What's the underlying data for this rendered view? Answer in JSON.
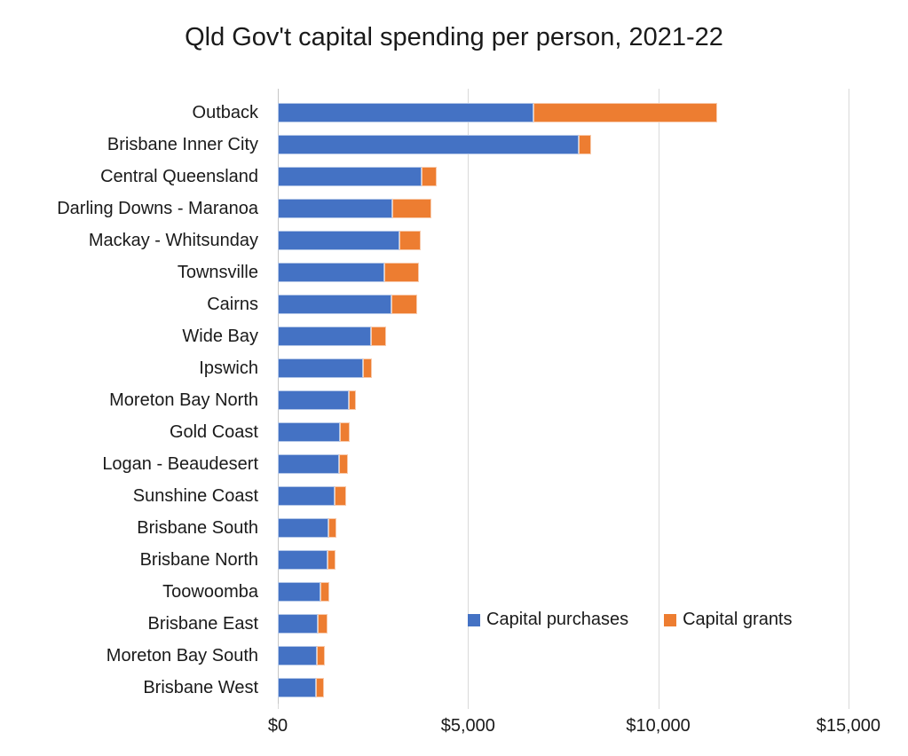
{
  "title": "Qld Gov't capital spending per person, 2021-22",
  "colors": {
    "purchases": "#4472C4",
    "grants": "#ED7D31",
    "purchases_border": "#B4C7E7",
    "grants_border": "#F8CBAD",
    "gridline": "#D9D9D9",
    "zero_line": "#C6C6C6",
    "text": "#1A1A1A"
  },
  "legend": [
    {
      "label": "Capital purchases",
      "color": "#4472C4"
    },
    {
      "label": "Capital grants",
      "color": "#ED7D31"
    }
  ],
  "chart_data": {
    "type": "bar",
    "orientation": "horizontal",
    "stacked": true,
    "title": "Qld Gov't capital spending per person, 2021-22",
    "categories": [
      "Outback",
      "Brisbane Inner City",
      "Central Queensland",
      "Darling Downs - Maranoa",
      "Mackay - Whitsunday",
      "Townsville",
      "Cairns",
      "Wide Bay",
      "Ipswich",
      "Moreton Bay North",
      "Gold Coast",
      "Logan - Beaudesert",
      "Sunshine Coast",
      "Brisbane South",
      "Brisbane North",
      "Toowoomba",
      "Brisbane East",
      "Moreton Bay South",
      "Brisbane West"
    ],
    "series": [
      {
        "name": "Capital purchases",
        "color": "#4472C4",
        "values": [
          6730,
          7920,
          3780,
          3010,
          3190,
          2800,
          2980,
          2450,
          2250,
          1870,
          1640,
          1620,
          1500,
          1320,
          1300,
          1130,
          1060,
          1030,
          1010
        ]
      },
      {
        "name": "Capital grants",
        "color": "#ED7D31",
        "values": [
          4830,
          320,
          400,
          1030,
          560,
          920,
          690,
          400,
          230,
          190,
          240,
          230,
          290,
          220,
          220,
          230,
          240,
          210,
          200
        ]
      }
    ],
    "x_ticks": {
      "values": [
        0,
        5000,
        10000,
        15000
      ],
      "labels": [
        "$0",
        "$5,000",
        "$10,000",
        "$15,000"
      ]
    },
    "xlim": [
      0,
      16240
    ],
    "grid": "vertical",
    "legend_position": "inside-bottom-right"
  }
}
